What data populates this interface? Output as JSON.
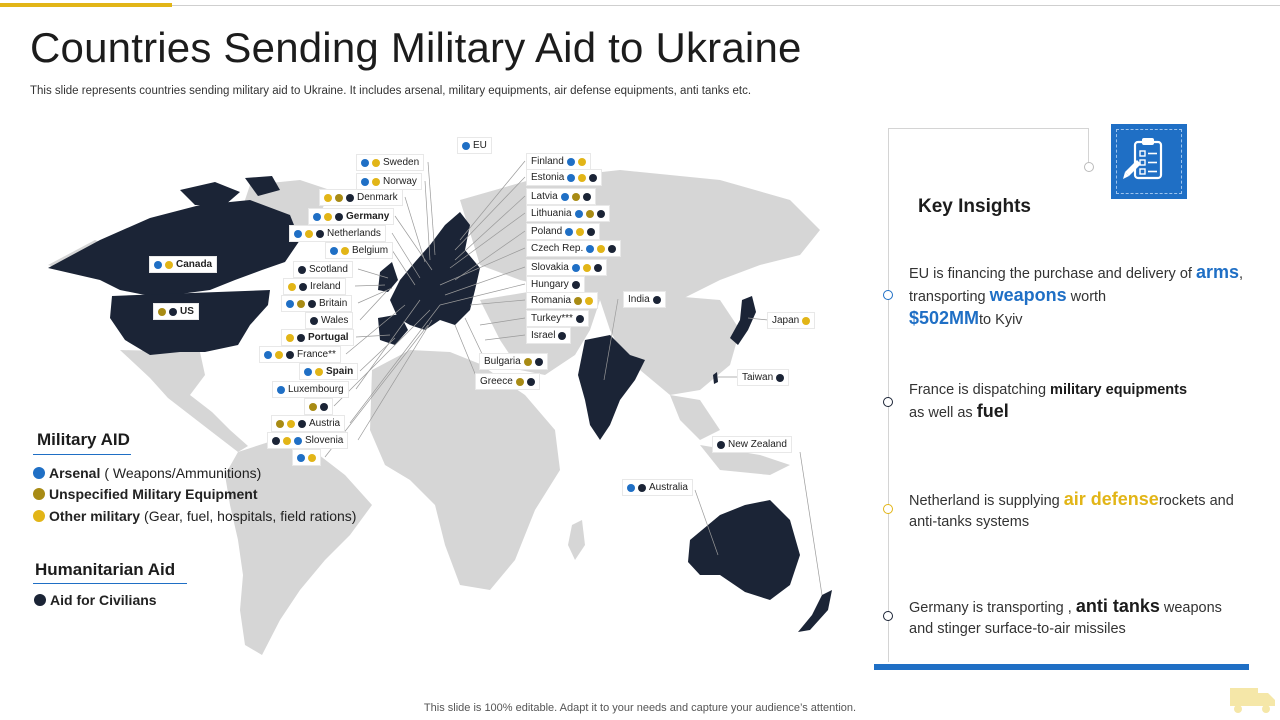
{
  "title": "Countries Sending Military Aid to Ukraine",
  "subtitle": "This slide represents countries sending military aid to Ukraine. It includes arsenal, military equipments, air defense equipments, anti tanks etc.",
  "footer": "This slide is 100% editable. Adapt it to your needs and capture your audience’s attention.",
  "colors": {
    "arsenal": "#1f6fc5",
    "unspecified": "#a88b14",
    "other": "#e2b517",
    "humanitarian": "#1b2436"
  },
  "legend": {
    "military_title": "Military AID",
    "arsenal_label": "Arsenal",
    "arsenal_desc": " ( Weapons/Ammunitions)",
    "unspec_label": "Unspecified Military Equipment",
    "other_label": "Other military",
    "other_desc": " (Gear, fuel, hospitals, field rations)",
    "humanitarian_title": "Humanitarian Aid",
    "civilians_label": "Aid  for Civilians"
  },
  "countries": [
    {
      "name": "EU",
      "dots": [
        "arsenal"
      ]
    },
    {
      "name": "Sweden",
      "dots": [
        "arsenal",
        "other"
      ]
    },
    {
      "name": "Norway",
      "dots": [
        "arsenal",
        "other"
      ]
    },
    {
      "name": "Denmark",
      "dots": [
        "other",
        "unspecified",
        "humanitarian"
      ]
    },
    {
      "name": "Germany",
      "dots": [
        "arsenal",
        "other",
        "humanitarian"
      ]
    },
    {
      "name": "Netherlands",
      "dots": [
        "arsenal",
        "other",
        "humanitarian"
      ]
    },
    {
      "name": "Belgium",
      "dots": [
        "arsenal",
        "other"
      ]
    },
    {
      "name": "Canada",
      "dots": [
        "arsenal",
        "other"
      ]
    },
    {
      "name": "Scotland",
      "dots": [
        "humanitarian"
      ]
    },
    {
      "name": "Ireland",
      "dots": [
        "other",
        "humanitarian"
      ]
    },
    {
      "name": "US",
      "dots": [
        "unspecified",
        "humanitarian"
      ]
    },
    {
      "name": "Britain",
      "dots": [
        "arsenal",
        "unspecified",
        "humanitarian"
      ]
    },
    {
      "name": "Wales",
      "dots": [
        "humanitarian"
      ]
    },
    {
      "name": "Portugal",
      "dots": [
        "other",
        "humanitarian"
      ]
    },
    {
      "name": "France**",
      "dots": [
        "arsenal",
        "other",
        "humanitarian"
      ]
    },
    {
      "name": "Spain",
      "dots": [
        "arsenal",
        "other"
      ]
    },
    {
      "name": "Luxembourg",
      "dots": [
        "arsenal"
      ]
    },
    {
      "name": "",
      "dots": [
        "unspecified",
        "humanitarian"
      ]
    },
    {
      "name": "Austria",
      "dots": [
        "unspecified",
        "other",
        "humanitarian"
      ]
    },
    {
      "name": "Slovenia",
      "dots": [
        "humanitarian",
        "other",
        "arsenal"
      ]
    },
    {
      "name": "",
      "dots": [
        "arsenal",
        "other"
      ]
    },
    {
      "name": "Finland",
      "dots": [
        "arsenal",
        "other"
      ]
    },
    {
      "name": "Estonia",
      "dots": [
        "arsenal",
        "other",
        "humanitarian"
      ]
    },
    {
      "name": "Latvia",
      "dots": [
        "arsenal",
        "unspecified",
        "humanitarian"
      ]
    },
    {
      "name": "Lithuania",
      "dots": [
        "arsenal",
        "unspecified",
        "humanitarian"
      ]
    },
    {
      "name": "Poland",
      "dots": [
        "arsenal",
        "other",
        "humanitarian"
      ]
    },
    {
      "name": "Czech Rep.",
      "dots": [
        "arsenal",
        "other",
        "humanitarian"
      ]
    },
    {
      "name": "Slovakia",
      "dots": [
        "arsenal",
        "other",
        "humanitarian"
      ]
    },
    {
      "name": "Hungary",
      "dots": [
        "humanitarian"
      ]
    },
    {
      "name": "Romania",
      "dots": [
        "unspecified",
        "other"
      ]
    },
    {
      "name": "Turkey***",
      "dots": [
        "humanitarian"
      ]
    },
    {
      "name": "Israel",
      "dots": [
        "humanitarian"
      ]
    },
    {
      "name": "Bulgaria",
      "dots": [
        "unspecified",
        "humanitarian"
      ]
    },
    {
      "name": "Greece",
      "dots": [
        "unspecified",
        "humanitarian"
      ]
    },
    {
      "name": "India",
      "dots": [
        "humanitarian"
      ]
    },
    {
      "name": "Japan",
      "dots": [
        "other"
      ]
    },
    {
      "name": "Taiwan",
      "dots": [
        "humanitarian"
      ]
    },
    {
      "name": "New Zealand",
      "dots": [
        "humanitarian"
      ]
    },
    {
      "name": "Australia",
      "dots": [
        "arsenal",
        "humanitarian"
      ]
    }
  ],
  "insights": {
    "title": "Key Insights",
    "i1_a": "EU is financing the purchase and delivery  of ",
    "i1_b": "arms",
    "i1_c": ", transporting ",
    "i1_d": "weapons",
    "i1_e": " worth ",
    "i1_f": "$502MM",
    "i1_g": "to Kyiv",
    "i2_a": "France is dispatching ",
    "i2_b": "military equipments",
    "i2_c": " as well as ",
    "i2_d": "fuel",
    "i3_a": "Netherland  is supplying ",
    "i3_b": "air defense",
    "i3_c": "rockets and anti-tanks  systems",
    "i4_a": "Germany  is transporting  , ",
    "i4_b": "anti tanks",
    "i4_c": " weapons and  stinger surface-to-air missiles"
  }
}
